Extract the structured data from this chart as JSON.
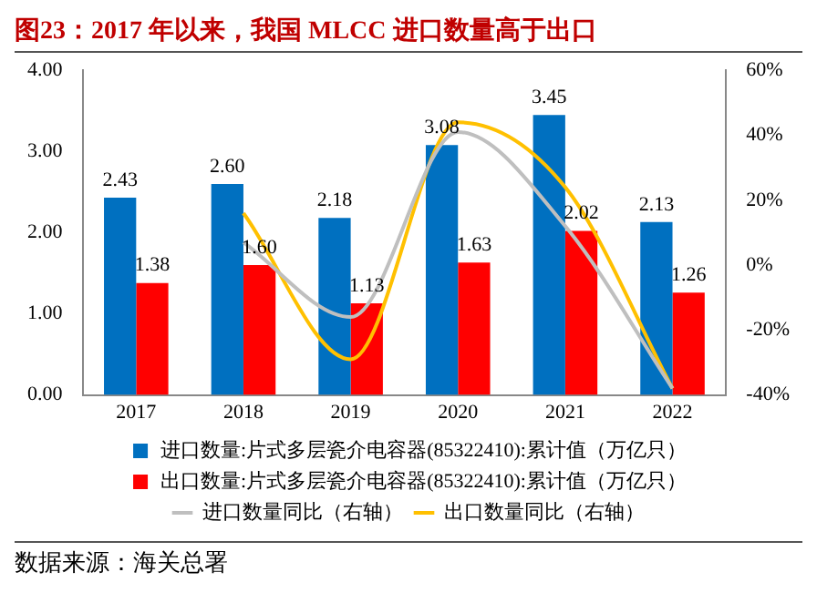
{
  "chart_data": {
    "type": "bar",
    "title": "图23：2017 年以来，我国 MLCC 进口数量高于出口",
    "categories": [
      "2017",
      "2018",
      "2019",
      "2020",
      "2021",
      "2022"
    ],
    "series": [
      {
        "name": "进口数量:片式多层瓷介电容器(85322410):累计值（万亿只）",
        "color": "#0070c0",
        "values": [
          2.43,
          2.6,
          2.18,
          3.08,
          3.45,
          2.13
        ],
        "value_labels": [
          "2.43",
          "2.60",
          "2.18",
          "3.08",
          "3.45",
          "2.13"
        ]
      },
      {
        "name": "出口数量:片式多层瓷介电容器(85322410):累计值（万亿只）",
        "color": "#ff0000",
        "values": [
          1.38,
          1.6,
          1.13,
          1.63,
          2.02,
          1.26
        ],
        "value_labels": [
          "1.38",
          "1.60",
          "1.13",
          "1.63",
          "2.02",
          "1.26"
        ]
      },
      {
        "name": "进口数量同比（右轴）",
        "type": "line",
        "axis": "y2",
        "color": "#bfbfbf",
        "values": [
          null,
          7,
          -16,
          41,
          12,
          -38
        ]
      },
      {
        "name": "出口数量同比（右轴）",
        "type": "line",
        "axis": "y2",
        "color": "#ffc000",
        "values": [
          null,
          16,
          -29,
          44,
          24,
          -38
        ]
      }
    ],
    "ylim": [
      0,
      4
    ],
    "yticks": [
      {
        "value": 0,
        "label": "0.00"
      },
      {
        "value": 1,
        "label": "1.00"
      },
      {
        "value": 2,
        "label": "2.00"
      },
      {
        "value": 3,
        "label": "3.00"
      },
      {
        "value": 4,
        "label": "4.00"
      }
    ],
    "y2lim": [
      -40,
      60
    ],
    "y2ticks": [
      {
        "value": -40,
        "label": "-40%"
      },
      {
        "value": -20,
        "label": "-20%"
      },
      {
        "value": 0,
        "label": "0%"
      },
      {
        "value": 20,
        "label": "20%"
      },
      {
        "value": 40,
        "label": "40%"
      },
      {
        "value": 60,
        "label": "60%"
      }
    ],
    "grid": false,
    "legend": "bottom",
    "marker": "none",
    "line_style": "solid",
    "annotations": [
      "数据来源：海关总署"
    ]
  }
}
